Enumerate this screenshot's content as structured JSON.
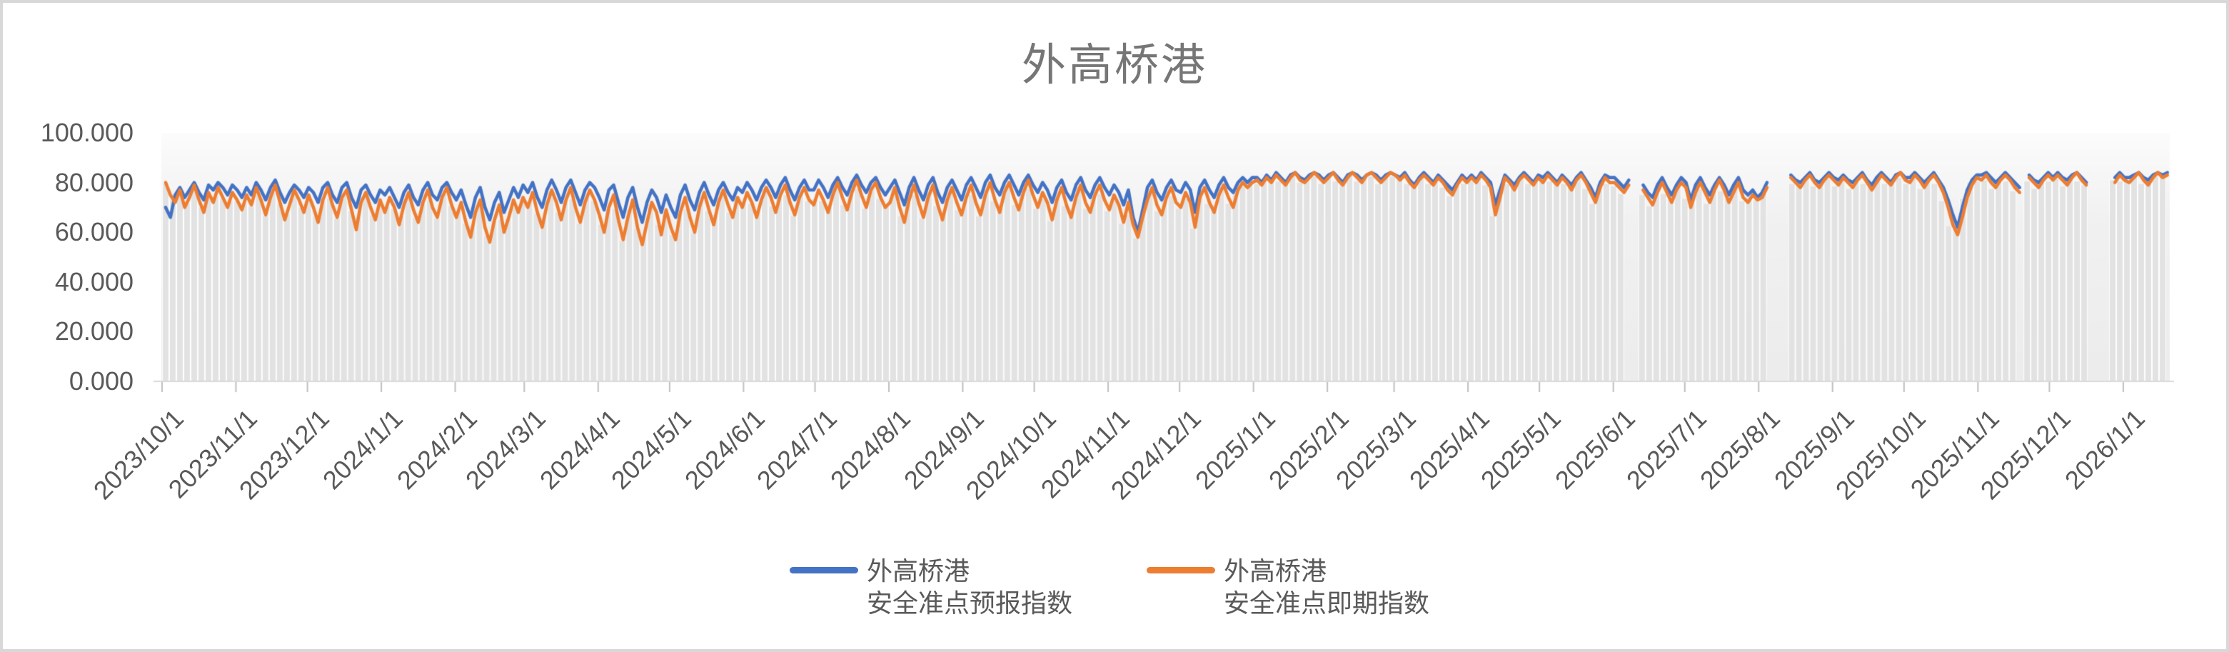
{
  "title": "外高桥港",
  "colors": {
    "blue": "#4472C4",
    "orange": "#ED7D31",
    "bar_fill": "#E2E2E2",
    "axis_text": "#595959",
    "title_text": "#767676",
    "axis_line": "#D9D9D9",
    "tick": "#BFBFBF",
    "frame_border": "#D8D8D8",
    "plot_bg_top": "#FCFCFC",
    "plot_bg_bottom": "#ECECEC"
  },
  "y_axis": {
    "labels": [
      "100.000",
      "80.000",
      "60.000",
      "40.000",
      "20.000",
      "0.000"
    ],
    "values": [
      100,
      80,
      60,
      40,
      20,
      0
    ]
  },
  "x_axis": {
    "labels": [
      "2023/10/1",
      "2023/11/1",
      "2023/12/1",
      "2024/1/1",
      "2024/2/1",
      "2024/3/1",
      "2024/4/1",
      "2024/5/1",
      "2024/6/1",
      "2024/7/1",
      "2024/8/1",
      "2024/9/1",
      "2024/10/1",
      "2024/11/1",
      "2024/12/1",
      "2025/1/1",
      "2025/2/1",
      "2025/3/1",
      "2025/4/1",
      "2025/5/1",
      "2025/6/1",
      "2025/7/1",
      "2025/8/1",
      "2025/9/1",
      "2025/10/1",
      "2025/11/1",
      "2025/12/1",
      "2026/1/1"
    ]
  },
  "legend": {
    "items": [
      {
        "line1": "外高桥港",
        "line2": "安全准点预报指数",
        "color": "#4472C4"
      },
      {
        "line1": "外高桥港",
        "line2": "安全准点即期指数",
        "color": "#ED7D31"
      }
    ]
  },
  "chart_data": {
    "type": "line",
    "title": "外高桥港",
    "x_start_date": "2023/10/1",
    "x_end_date": "2026/1/18",
    "total_days": 841,
    "sample_stride_days": 2,
    "ylim": [
      0,
      100
    ],
    "grid": false,
    "legend_position": "bottom",
    "bar_color": "#E2E2E2",
    "month_tick_days": [
      0,
      31,
      61,
      92,
      123,
      152,
      183,
      213,
      244,
      274,
      305,
      336,
      366,
      397,
      427,
      458,
      489,
      517,
      548,
      578,
      609,
      639,
      670,
      701,
      731,
      762,
      792,
      823
    ],
    "gaps_day_ranges": [
      [
        615,
        619
      ],
      [
        673,
        681
      ],
      [
        779,
        781
      ],
      [
        808,
        817
      ]
    ],
    "series": [
      {
        "name": "外高桥港安全准点预报指数",
        "color": "#4472C4",
        "values": [
          70,
          66,
          75,
          78,
          74,
          77,
          80,
          76,
          73,
          79,
          77,
          80,
          78,
          75,
          79,
          77,
          74,
          78,
          75,
          80,
          77,
          73,
          78,
          81,
          76,
          72,
          76,
          79,
          77,
          74,
          78,
          76,
          72,
          78,
          80,
          75,
          72,
          78,
          80,
          74,
          70,
          77,
          79,
          75,
          72,
          77,
          75,
          78,
          74,
          70,
          76,
          79,
          74,
          71,
          77,
          80,
          75,
          73,
          78,
          80,
          76,
          73,
          77,
          71,
          66,
          74,
          78,
          70,
          65,
          72,
          76,
          68,
          73,
          78,
          74,
          79,
          76,
          80,
          74,
          70,
          77,
          81,
          77,
          72,
          78,
          81,
          76,
          71,
          77,
          80,
          78,
          74,
          69,
          77,
          79,
          72,
          66,
          74,
          78,
          70,
          64,
          72,
          77,
          74,
          68,
          75,
          70,
          66,
          75,
          79,
          73,
          69,
          76,
          80,
          75,
          71,
          77,
          80,
          76,
          73,
          78,
          76,
          80,
          77,
          73,
          78,
          81,
          78,
          74,
          79,
          82,
          77,
          73,
          78,
          81,
          77,
          77,
          81,
          78,
          74,
          79,
          82,
          78,
          75,
          80,
          83,
          79,
          76,
          80,
          82,
          78,
          75,
          78,
          81,
          76,
          71,
          78,
          82,
          77,
          73,
          79,
          82,
          76,
          72,
          78,
          81,
          77,
          73,
          79,
          82,
          78,
          74,
          80,
          83,
          78,
          75,
          80,
          83,
          79,
          75,
          80,
          83,
          79,
          76,
          80,
          77,
          72,
          78,
          81,
          76,
          73,
          79,
          82,
          77,
          74,
          79,
          82,
          78,
          75,
          79,
          76,
          71,
          77,
          66,
          60,
          69,
          78,
          81,
          76,
          73,
          78,
          81,
          77,
          76,
          80,
          77,
          68,
          78,
          81,
          77,
          74,
          79,
          82,
          78,
          76,
          80,
          82,
          80,
          82,
          82,
          80,
          83,
          81,
          84,
          82,
          80,
          83,
          84,
          82,
          81,
          83,
          84,
          83,
          81,
          83,
          84,
          82,
          80,
          83,
          84,
          83,
          81,
          83,
          84,
          83,
          81,
          83,
          84,
          83,
          82,
          84,
          81,
          79,
          82,
          84,
          82,
          80,
          83,
          81,
          79,
          77,
          80,
          83,
          81,
          83,
          81,
          84,
          82,
          80,
          71,
          77,
          83,
          81,
          79,
          82,
          84,
          82,
          80,
          83,
          82,
          84,
          82,
          80,
          83,
          81,
          79,
          82,
          84,
          81,
          78,
          74,
          80,
          83,
          82,
          82,
          80,
          78,
          81,
          80,
          82,
          79,
          76,
          74,
          79,
          82,
          78,
          75,
          79,
          82,
          80,
          73,
          79,
          82,
          78,
          75,
          79,
          82,
          79,
          75,
          79,
          82,
          77,
          75,
          77,
          74,
          76,
          80,
          78,
          79,
          81,
          83,
          83,
          81,
          80,
          82,
          84,
          81,
          80,
          82,
          84,
          82,
          81,
          83,
          81,
          80,
          82,
          84,
          81,
          79,
          82,
          84,
          82,
          80,
          83,
          84,
          82,
          82,
          84,
          82,
          80,
          82,
          84,
          81,
          78,
          73,
          67,
          62,
          70,
          77,
          81,
          83,
          83,
          84,
          82,
          80,
          82,
          84,
          82,
          80,
          78,
          81,
          83,
          81,
          80,
          82,
          84,
          82,
          84,
          82,
          81,
          83,
          84,
          82,
          80,
          81,
          83,
          82,
          81,
          83,
          82,
          84,
          82,
          82,
          83,
          84,
          82,
          81,
          83,
          84,
          83,
          84
        ]
      },
      {
        "name": "外高桥港安全准点即期指数",
        "color": "#ED7D31",
        "values": [
          80,
          75,
          72,
          77,
          70,
          74,
          79,
          73,
          68,
          76,
          72,
          78,
          74,
          70,
          76,
          73,
          69,
          75,
          71,
          78,
          73,
          67,
          74,
          79,
          72,
          65,
          71,
          77,
          73,
          68,
          75,
          70,
          64,
          73,
          78,
          71,
          66,
          74,
          77,
          69,
          61,
          72,
          76,
          70,
          65,
          73,
          68,
          74,
          70,
          63,
          71,
          76,
          69,
          64,
          72,
          77,
          70,
          66,
          74,
          78,
          71,
          66,
          72,
          64,
          58,
          68,
          73,
          62,
          56,
          65,
          71,
          60,
          66,
          73,
          68,
          74,
          70,
          76,
          68,
          62,
          71,
          77,
          72,
          65,
          73,
          78,
          70,
          64,
          72,
          77,
          73,
          67,
          60,
          70,
          75,
          65,
          57,
          66,
          73,
          62,
          55,
          64,
          72,
          68,
          59,
          69,
          62,
          57,
          68,
          74,
          66,
          60,
          70,
          76,
          69,
          63,
          72,
          77,
          71,
          66,
          74,
          70,
          76,
          72,
          66,
          73,
          78,
          74,
          68,
          75,
          79,
          72,
          67,
          74,
          78,
          73,
          71,
          77,
          73,
          68,
          75,
          80,
          74,
          69,
          76,
          81,
          75,
          70,
          77,
          80,
          74,
          70,
          72,
          78,
          70,
          64,
          73,
          79,
          72,
          66,
          74,
          79,
          71,
          65,
          73,
          78,
          72,
          67,
          74,
          79,
          72,
          67,
          75,
          80,
          73,
          68,
          76,
          80,
          74,
          69,
          76,
          81,
          75,
          70,
          76,
          72,
          65,
          73,
          78,
          71,
          66,
          74,
          79,
          72,
          68,
          75,
          79,
          73,
          69,
          75,
          71,
          64,
          72,
          63,
          58,
          66,
          73,
          78,
          71,
          67,
          74,
          78,
          72,
          70,
          76,
          72,
          62,
          74,
          78,
          72,
          68,
          75,
          79,
          74,
          70,
          77,
          80,
          78,
          80,
          81,
          79,
          82,
          80,
          83,
          81,
          79,
          82,
          84,
          81,
          80,
          82,
          84,
          82,
          80,
          82,
          84,
          81,
          79,
          82,
          84,
          82,
          80,
          83,
          84,
          82,
          80,
          82,
          84,
          83,
          81,
          83,
          80,
          78,
          81,
          83,
          81,
          79,
          82,
          80,
          77,
          75,
          79,
          82,
          80,
          82,
          80,
          83,
          81,
          78,
          67,
          74,
          82,
          80,
          77,
          81,
          83,
          81,
          79,
          82,
          80,
          83,
          81,
          79,
          82,
          80,
          77,
          81,
          83,
          80,
          76,
          72,
          78,
          82,
          80,
          80,
          78,
          76,
          79,
          78,
          80,
          77,
          74,
          71,
          76,
          80,
          76,
          72,
          77,
          80,
          78,
          70,
          76,
          80,
          76,
          72,
          77,
          81,
          77,
          72,
          76,
          80,
          74,
          72,
          75,
          73,
          74,
          78,
          76,
          77,
          79,
          81,
          82,
          80,
          78,
          81,
          83,
          80,
          78,
          81,
          83,
          81,
          79,
          82,
          80,
          78,
          81,
          83,
          80,
          77,
          80,
          83,
          81,
          79,
          82,
          84,
          81,
          80,
          83,
          81,
          78,
          81,
          83,
          80,
          76,
          70,
          63,
          59,
          66,
          74,
          79,
          82,
          81,
          83,
          80,
          78,
          81,
          83,
          81,
          78,
          76,
          79,
          82,
          80,
          78,
          81,
          83,
          81,
          83,
          81,
          79,
          82,
          84,
          81,
          79,
          80,
          82,
          81,
          80,
          82,
          80,
          83,
          81,
          80,
          82,
          84,
          81,
          79,
          82,
          84,
          82,
          83
        ]
      }
    ]
  }
}
